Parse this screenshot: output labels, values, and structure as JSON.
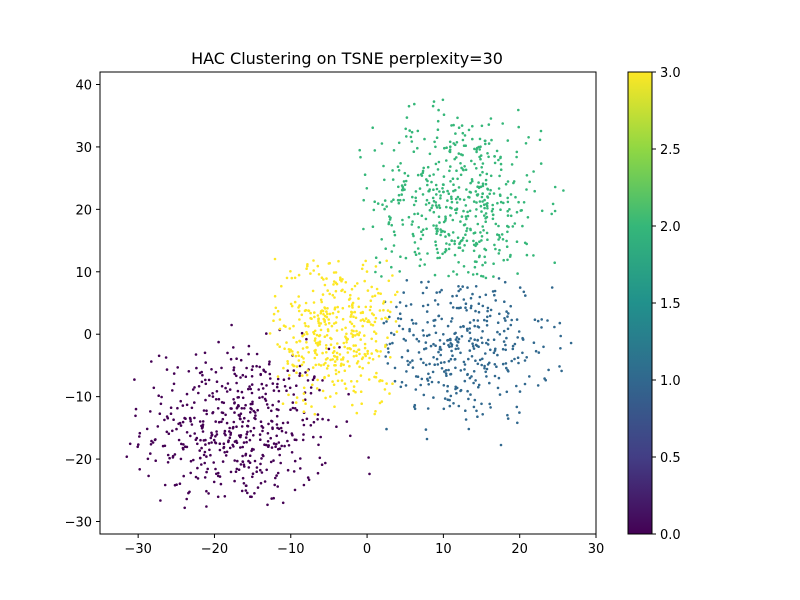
{
  "chart_data": {
    "type": "scatter",
    "title": "HAC Clustering on TSNE perplexity=30",
    "xlabel": "",
    "ylabel": "",
    "xlim": [
      -35,
      30
    ],
    "ylim": [
      -32,
      42
    ],
    "xticks": [
      -30,
      -20,
      -10,
      0,
      10,
      20,
      30
    ],
    "yticks": [
      -30,
      -20,
      -10,
      0,
      10,
      20,
      30,
      40
    ],
    "grid": false,
    "colorbar": {
      "range": [
        0,
        3
      ],
      "ticks": [
        "0.0",
        "0.5",
        "1.0",
        "1.5",
        "2.0",
        "2.5",
        "3.0"
      ],
      "colormap": "viridis"
    },
    "clusters": [
      {
        "label": 0,
        "color": "#440154",
        "approx_points": 520,
        "center": [
          -17,
          -15
        ],
        "spread": [
          6.2,
          6.5
        ],
        "x_range": [
          -32,
          3
        ],
        "y_range": [
          -28,
          6
        ]
      },
      {
        "label": 1,
        "color": "#31688e",
        "approx_points": 380,
        "center": [
          12,
          -2
        ],
        "spread": [
          6,
          6
        ],
        "x_range": [
          2,
          27
        ],
        "y_range": [
          -19,
          9
        ]
      },
      {
        "label": 2,
        "color": "#35b779",
        "approx_points": 520,
        "center": [
          12,
          21
        ],
        "spread": [
          5.5,
          7.5
        ],
        "x_range": [
          -1,
          27
        ],
        "y_range": [
          9,
          38
        ]
      },
      {
        "label": 3,
        "color": "#fde725",
        "approx_points": 420,
        "center": [
          -4,
          0
        ],
        "spread": [
          4,
          6.5
        ],
        "x_range": [
          -13,
          4
        ],
        "y_range": [
          -13,
          13
        ]
      }
    ]
  }
}
